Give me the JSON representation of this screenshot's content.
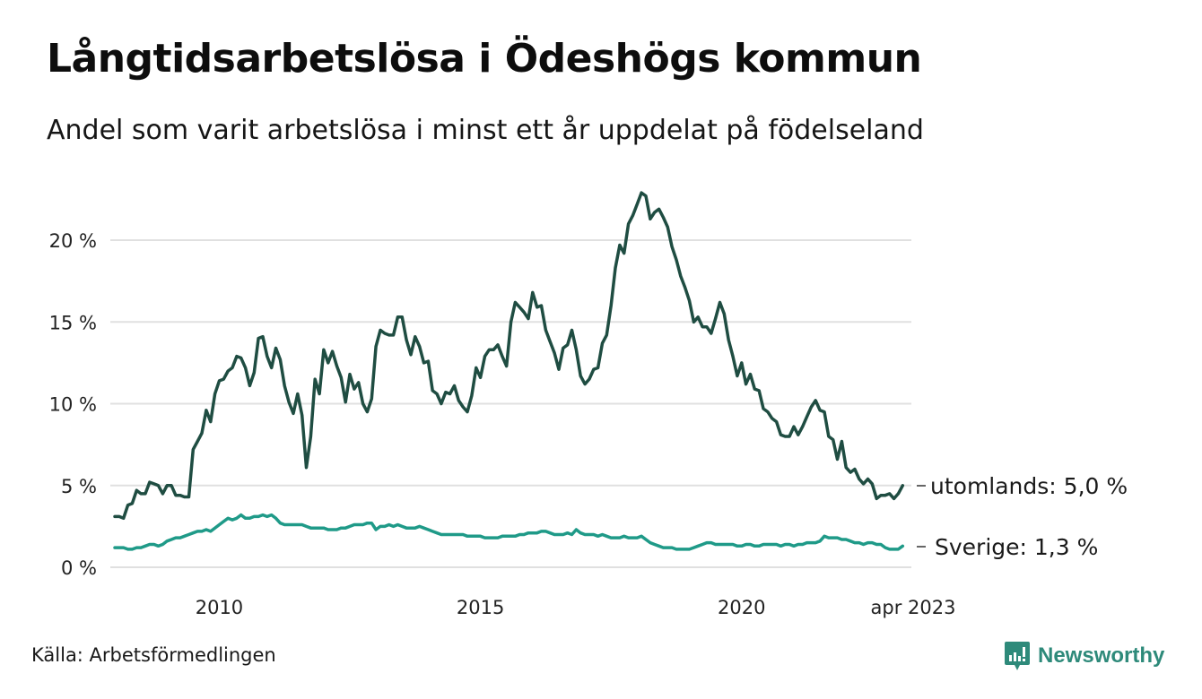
{
  "header": {
    "title": "Långtidsarbetslösa i Ödeshögs kommun",
    "subtitle": "Andel som varit arbetslösa i minst ett år uppdelat på födelseland"
  },
  "footer": {
    "source": "Källa: Arbetsförmedlingen",
    "brand": "Newsworthy",
    "brand_icon": "bar-chart-speech-bubble-icon"
  },
  "colors": {
    "utomlands": "#1f4d42",
    "sverige": "#1f9a88",
    "grid": "#e0e0e0",
    "brand": "#2e8a7a"
  },
  "chart_data": {
    "type": "line",
    "title": "Långtidsarbetslösa i Ödeshögs kommun",
    "subtitle": "Andel som varit arbetslösa i minst ett år uppdelat på födelseland",
    "xlabel": "",
    "ylabel": "",
    "x_start": "2008-01",
    "x_end": "2023-04",
    "x_frequency": "monthly",
    "x_ticks": [
      {
        "label": "2010",
        "value": "2010-01"
      },
      {
        "label": "2015",
        "value": "2015-01"
      },
      {
        "label": "2020",
        "value": "2020-01"
      },
      {
        "label": "apr 2023",
        "value": "2023-04"
      }
    ],
    "y_ticks": [
      {
        "label": "0 %",
        "value": 0
      },
      {
        "label": "5 %",
        "value": 5
      },
      {
        "label": "10 %",
        "value": 10
      },
      {
        "label": "15 %",
        "value": 15
      },
      {
        "label": "20 %",
        "value": 20
      }
    ],
    "ylim": [
      0,
      23
    ],
    "grid": true,
    "legend": "end-labels-right",
    "series": [
      {
        "name": "utomlands",
        "end_label": "utomlands: 5,0 %",
        "color": "#1f4d42",
        "values": [
          3.1,
          3.1,
          3.0,
          3.8,
          3.9,
          4.7,
          4.5,
          4.5,
          5.2,
          5.1,
          5.0,
          4.5,
          5.0,
          5.0,
          4.4,
          4.4,
          4.3,
          4.3,
          7.2,
          7.7,
          8.2,
          9.6,
          8.9,
          10.6,
          11.4,
          11.5,
          12.0,
          12.2,
          12.9,
          12.8,
          12.2,
          11.1,
          11.9,
          14.0,
          14.1,
          12.9,
          12.2,
          13.4,
          12.7,
          11.1,
          10.1,
          9.4,
          10.6,
          9.3,
          6.1,
          8.0,
          11.5,
          10.6,
          13.3,
          12.5,
          13.2,
          12.3,
          11.6,
          10.1,
          11.8,
          10.9,
          11.3,
          10.0,
          9.5,
          10.3,
          13.5,
          14.5,
          14.3,
          14.2,
          14.2,
          15.3,
          15.3,
          13.9,
          13.0,
          14.1,
          13.5,
          12.5,
          12.6,
          10.8,
          10.6,
          10.0,
          10.7,
          10.6,
          11.1,
          10.2,
          9.8,
          9.5,
          10.5,
          12.2,
          11.6,
          12.9,
          13.3,
          13.3,
          13.6,
          12.9,
          12.3,
          15.0,
          16.2,
          15.9,
          15.6,
          15.2,
          16.8,
          15.9,
          16.0,
          14.5,
          13.8,
          13.1,
          12.1,
          13.4,
          13.6,
          14.5,
          13.3,
          11.7,
          11.2,
          11.5,
          12.1,
          12.2,
          13.7,
          14.2,
          16.0,
          18.3,
          19.7,
          19.2,
          21.0,
          21.5,
          22.2,
          22.9,
          22.7,
          21.3,
          21.7,
          21.9,
          21.4,
          20.8,
          19.6,
          18.8,
          17.8,
          17.1,
          16.3,
          15.0,
          15.3,
          14.7,
          14.7,
          14.3,
          15.2,
          16.2,
          15.5,
          13.9,
          12.9,
          11.7,
          12.5,
          11.2,
          11.8,
          10.9,
          10.8,
          9.7,
          9.5,
          9.1,
          8.9,
          8.1,
          8.0,
          8.0,
          8.6,
          8.1,
          8.6,
          9.2,
          9.8,
          10.2,
          9.6,
          9.5,
          8.0,
          7.8,
          6.6,
          7.7,
          6.1,
          5.8,
          6.0,
          5.4,
          5.1,
          5.4,
          5.1,
          4.2,
          4.4,
          4.4,
          4.5,
          4.2,
          4.5,
          5.0
        ]
      },
      {
        "name": "Sverige",
        "end_label": "Sverige: 1,3 %",
        "color": "#1f9a88",
        "values": [
          1.2,
          1.2,
          1.2,
          1.1,
          1.1,
          1.2,
          1.2,
          1.3,
          1.4,
          1.4,
          1.3,
          1.4,
          1.6,
          1.7,
          1.8,
          1.8,
          1.9,
          2.0,
          2.1,
          2.2,
          2.2,
          2.3,
          2.2,
          2.4,
          2.6,
          2.8,
          3.0,
          2.9,
          3.0,
          3.2,
          3.0,
          3.0,
          3.1,
          3.1,
          3.2,
          3.1,
          3.2,
          3.0,
          2.7,
          2.6,
          2.6,
          2.6,
          2.6,
          2.6,
          2.5,
          2.4,
          2.4,
          2.4,
          2.4,
          2.3,
          2.3,
          2.3,
          2.4,
          2.4,
          2.5,
          2.6,
          2.6,
          2.6,
          2.7,
          2.7,
          2.3,
          2.5,
          2.5,
          2.6,
          2.5,
          2.6,
          2.5,
          2.4,
          2.4,
          2.4,
          2.5,
          2.4,
          2.3,
          2.2,
          2.1,
          2.0,
          2.0,
          2.0,
          2.0,
          2.0,
          2.0,
          1.9,
          1.9,
          1.9,
          1.9,
          1.8,
          1.8,
          1.8,
          1.8,
          1.9,
          1.9,
          1.9,
          1.9,
          2.0,
          2.0,
          2.1,
          2.1,
          2.1,
          2.2,
          2.2,
          2.1,
          2.0,
          2.0,
          2.0,
          2.1,
          2.0,
          2.3,
          2.1,
          2.0,
          2.0,
          2.0,
          1.9,
          2.0,
          1.9,
          1.8,
          1.8,
          1.8,
          1.9,
          1.8,
          1.8,
          1.8,
          1.9,
          1.7,
          1.5,
          1.4,
          1.3,
          1.2,
          1.2,
          1.2,
          1.1,
          1.1,
          1.1,
          1.1,
          1.2,
          1.3,
          1.4,
          1.5,
          1.5,
          1.4,
          1.4,
          1.4,
          1.4,
          1.4,
          1.3,
          1.3,
          1.4,
          1.4,
          1.3,
          1.3,
          1.4,
          1.4,
          1.4,
          1.4,
          1.3,
          1.4,
          1.4,
          1.3,
          1.4,
          1.4,
          1.5,
          1.5,
          1.5,
          1.6,
          1.9,
          1.8,
          1.8,
          1.8,
          1.7,
          1.7,
          1.6,
          1.5,
          1.5,
          1.4,
          1.5,
          1.5,
          1.4,
          1.4,
          1.2,
          1.1,
          1.1,
          1.1,
          1.3
        ]
      }
    ]
  }
}
